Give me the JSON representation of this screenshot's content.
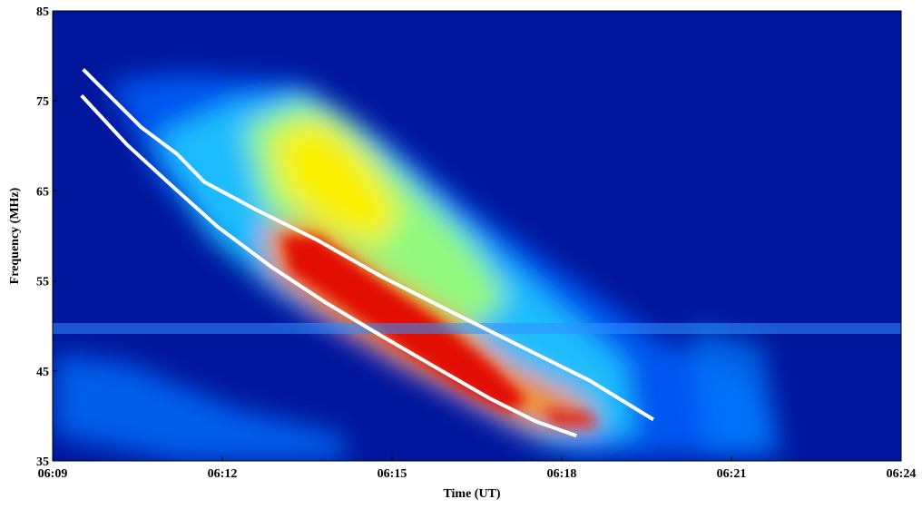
{
  "chart_data": {
    "type": "line",
    "x_label": "Time (UT)",
    "y_label": "Frequency (MHz)",
    "xlim": [
      369,
      384
    ],
    "xticks": [
      {
        "value": 369,
        "label": "06:09"
      },
      {
        "value": 372,
        "label": "06:12"
      },
      {
        "value": 375,
        "label": "06:15"
      },
      {
        "value": 378,
        "label": "06:18"
      },
      {
        "value": 381,
        "label": "06:21"
      },
      {
        "value": 384,
        "label": "06:24"
      }
    ],
    "ylim": [
      35,
      85
    ],
    "yticks": [
      35,
      45,
      55,
      65,
      75,
      85
    ],
    "series": [
      {
        "color": "#ffffff",
        "x": [
          369.51,
          370.32,
          371.12,
          371.92,
          372.88,
          373.85,
          374.81,
          375.77,
          376.74,
          377.54,
          378.26
        ],
        "values": [
          75.6,
          70.1,
          65.5,
          61.0,
          56.5,
          52.5,
          48.9,
          45.4,
          41.9,
          39.4,
          37.8
        ]
      },
      {
        "color": "#ffffff",
        "x": [
          369.54,
          370.56,
          371.2,
          371.68,
          372.57,
          373.69,
          374.81,
          376.1,
          377.38,
          378.5,
          379.62
        ],
        "values": [
          78.5,
          72.1,
          69.1,
          66.0,
          63.0,
          59.5,
          55.5,
          51.4,
          47.4,
          43.9,
          39.6
        ]
      }
    ]
  }
}
